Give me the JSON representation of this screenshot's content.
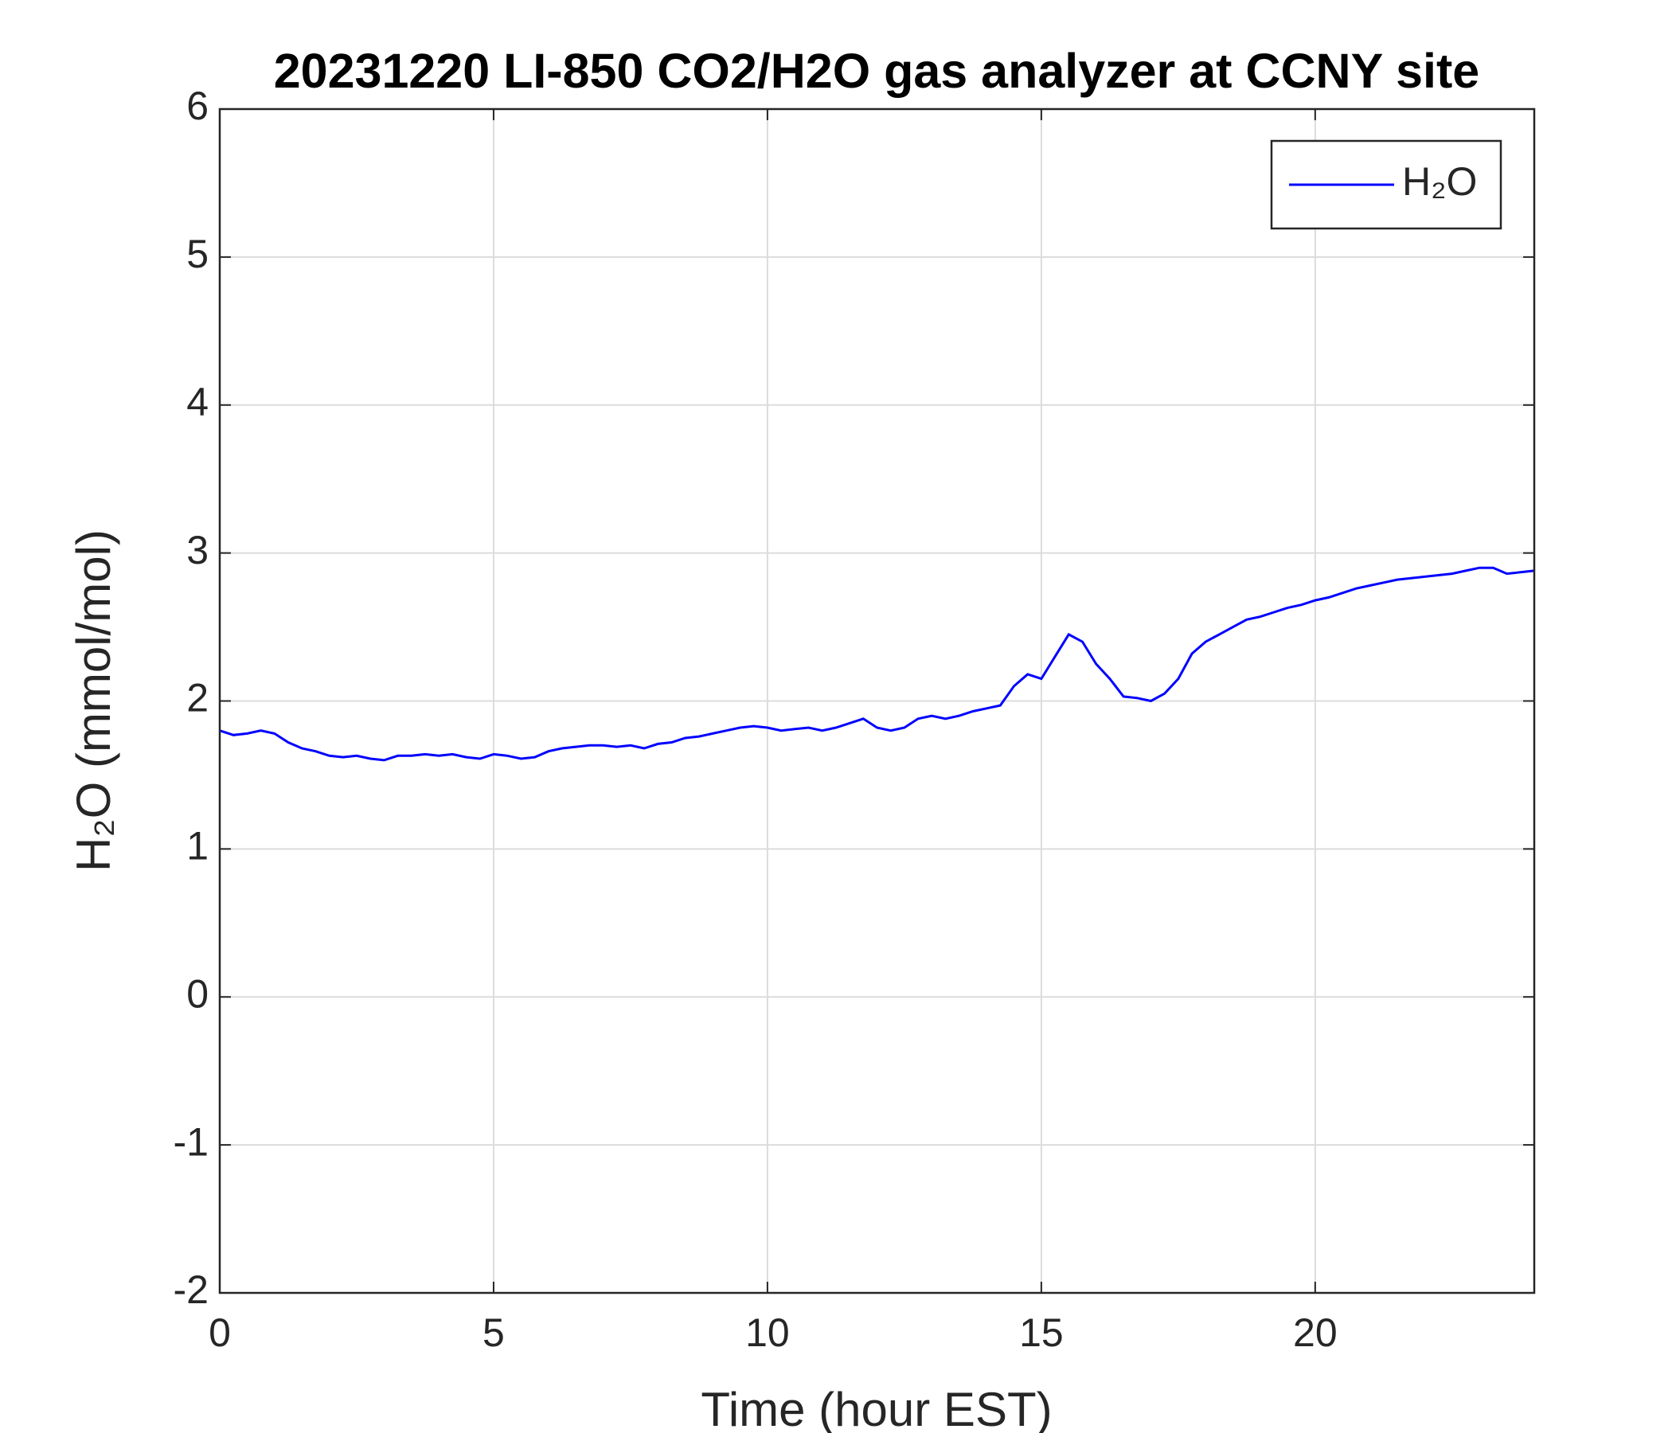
{
  "chart_data": {
    "type": "line",
    "title": "20231220 LI-850 CO2/H2O gas analyzer at CCNY site",
    "x_label": "Time (hour EST)",
    "y_label": "H₂O (mmol/mol)",
    "xlim": [
      0,
      24
    ],
    "xticks": [
      0,
      5,
      10,
      15,
      20
    ],
    "ylim": [
      -2,
      6
    ],
    "yticks": [
      -2,
      -1,
      0,
      1,
      2,
      3,
      4,
      5,
      6
    ],
    "grid": true,
    "legend": "upper right",
    "x": [
      0,
      0.25,
      0.5,
      0.75,
      1,
      1.25,
      1.5,
      1.75,
      2,
      2.25,
      2.5,
      2.75,
      3,
      3.25,
      3.5,
      3.75,
      4,
      4.25,
      4.5,
      4.75,
      5,
      5.25,
      5.5,
      5.75,
      6,
      6.25,
      6.5,
      6.75,
      7,
      7.25,
      7.5,
      7.75,
      8,
      8.25,
      8.5,
      8.75,
      9,
      9.25,
      9.5,
      9.75,
      10,
      10.25,
      10.5,
      10.75,
      11,
      11.25,
      11.5,
      11.75,
      12,
      12.25,
      12.5,
      12.75,
      13,
      13.25,
      13.5,
      13.75,
      14,
      14.25,
      14.5,
      14.75,
      15,
      15.25,
      15.5,
      15.75,
      16,
      16.25,
      16.5,
      16.75,
      17,
      17.25,
      17.5,
      17.75,
      18,
      18.25,
      18.5,
      18.75,
      19,
      19.25,
      19.5,
      19.75,
      20,
      20.25,
      20.5,
      20.75,
      21,
      21.25,
      21.5,
      21.75,
      22,
      22.25,
      22.5,
      22.75,
      23,
      23.25,
      23.5,
      23.75,
      24
    ],
    "series": [
      {
        "name": "H₂O",
        "color": "#0000ff",
        "values": [
          1.8,
          1.77,
          1.78,
          1.8,
          1.78,
          1.72,
          1.68,
          1.66,
          1.63,
          1.62,
          1.63,
          1.61,
          1.6,
          1.63,
          1.63,
          1.64,
          1.63,
          1.64,
          1.62,
          1.61,
          1.64,
          1.63,
          1.61,
          1.62,
          1.66,
          1.68,
          1.69,
          1.7,
          1.7,
          1.69,
          1.7,
          1.68,
          1.71,
          1.72,
          1.75,
          1.76,
          1.78,
          1.8,
          1.82,
          1.83,
          1.82,
          1.8,
          1.81,
          1.82,
          1.8,
          1.82,
          1.85,
          1.88,
          1.82,
          1.8,
          1.82,
          1.88,
          1.9,
          1.88,
          1.9,
          1.93,
          1.95,
          1.97,
          2.1,
          2.18,
          2.15,
          2.3,
          2.45,
          2.4,
          2.25,
          2.15,
          2.03,
          2.02,
          2.0,
          2.05,
          2.15,
          2.32,
          2.4,
          2.45,
          2.5,
          2.55,
          2.57,
          2.6,
          2.63,
          2.65,
          2.68,
          2.7,
          2.73,
          2.76,
          2.78,
          2.8,
          2.82,
          2.83,
          2.84,
          2.85,
          2.86,
          2.88,
          2.9,
          2.9,
          2.86,
          2.87,
          2.88
        ]
      }
    ]
  }
}
